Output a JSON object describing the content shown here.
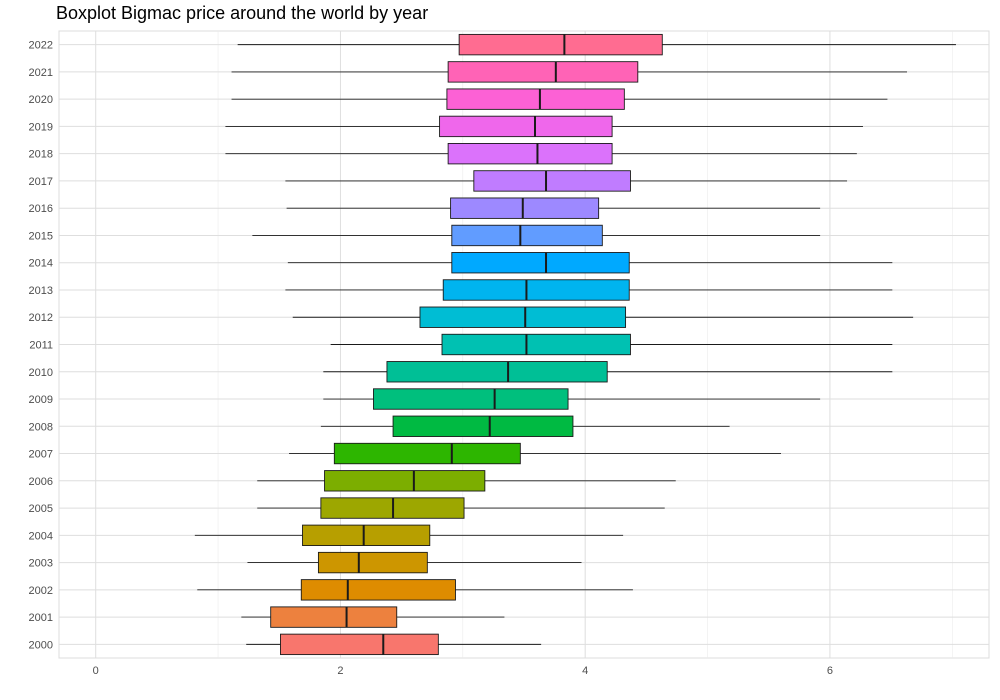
{
  "chart_data": {
    "type": "boxplot",
    "orientation": "horizontal",
    "title": "Boxplot Bigmac price around the world by year",
    "xlabel": "",
    "ylabel": "",
    "xlim": [
      -0.3,
      7.3
    ],
    "x_ticks": [
      0,
      2,
      4,
      6
    ],
    "grid": true,
    "legend": "none",
    "categories": [
      "2022",
      "2021",
      "2020",
      "2019",
      "2018",
      "2017",
      "2016",
      "2015",
      "2014",
      "2013",
      "2012",
      "2011",
      "2010",
      "2009",
      "2008",
      "2007",
      "2006",
      "2005",
      "2004",
      "2003",
      "2002",
      "2001",
      "2000"
    ],
    "boxes": [
      {
        "year": "2022",
        "min": 1.16,
        "q1": 2.97,
        "median": 3.83,
        "q3": 4.63,
        "max": 7.03,
        "color": "#FF6C91"
      },
      {
        "year": "2021",
        "min": 1.11,
        "q1": 2.88,
        "median": 3.76,
        "q3": 4.43,
        "max": 6.63,
        "color": "#FF63B6"
      },
      {
        "year": "2020",
        "min": 1.11,
        "q1": 2.87,
        "median": 3.63,
        "q3": 4.32,
        "max": 6.47,
        "color": "#FC61D5"
      },
      {
        "year": "2019",
        "min": 1.06,
        "q1": 2.81,
        "median": 3.59,
        "q3": 4.22,
        "max": 6.27,
        "color": "#EF67EB"
      },
      {
        "year": "2018",
        "min": 1.06,
        "q1": 2.88,
        "median": 3.61,
        "q3": 4.22,
        "max": 6.22,
        "color": "#DB72FB"
      },
      {
        "year": "2017",
        "min": 1.55,
        "q1": 3.09,
        "median": 3.68,
        "q3": 4.37,
        "max": 6.14,
        "color": "#C07CFF"
      },
      {
        "year": "2016",
        "min": 1.56,
        "q1": 2.9,
        "median": 3.49,
        "q3": 4.11,
        "max": 5.92,
        "color": "#9D89FF"
      },
      {
        "year": "2015",
        "min": 1.28,
        "q1": 2.91,
        "median": 3.47,
        "q3": 4.14,
        "max": 5.92,
        "color": "#619CFF"
      },
      {
        "year": "2014",
        "min": 1.57,
        "q1": 2.91,
        "median": 3.68,
        "q3": 4.36,
        "max": 6.51,
        "color": "#00A9FF"
      },
      {
        "year": "2013",
        "min": 1.55,
        "q1": 2.84,
        "median": 3.52,
        "q3": 4.36,
        "max": 6.51,
        "color": "#00B4EF"
      },
      {
        "year": "2012",
        "min": 1.61,
        "q1": 2.65,
        "median": 3.51,
        "q3": 4.33,
        "max": 6.68,
        "color": "#00BDD4"
      },
      {
        "year": "2011",
        "min": 1.92,
        "q1": 2.83,
        "median": 3.52,
        "q3": 4.37,
        "max": 6.51,
        "color": "#00C1B2"
      },
      {
        "year": "2010",
        "min": 1.86,
        "q1": 2.38,
        "median": 3.37,
        "q3": 4.18,
        "max": 6.51,
        "color": "#00BF96"
      },
      {
        "year": "2009",
        "min": 1.86,
        "q1": 2.27,
        "median": 3.26,
        "q3": 3.86,
        "max": 5.92,
        "color": "#00BF7D"
      },
      {
        "year": "2008",
        "min": 1.84,
        "q1": 2.43,
        "median": 3.22,
        "q3": 3.9,
        "max": 5.18,
        "color": "#00BA42"
      },
      {
        "year": "2007",
        "min": 1.58,
        "q1": 1.95,
        "median": 2.91,
        "q3": 3.47,
        "max": 5.6,
        "color": "#2DB600"
      },
      {
        "year": "2006",
        "min": 1.32,
        "q1": 1.87,
        "median": 2.6,
        "q3": 3.18,
        "max": 4.74,
        "color": "#7CAE00"
      },
      {
        "year": "2005",
        "min": 1.32,
        "q1": 1.84,
        "median": 2.43,
        "q3": 3.01,
        "max": 4.65,
        "color": "#9DA700"
      },
      {
        "year": "2004",
        "min": 0.81,
        "q1": 1.69,
        "median": 2.19,
        "q3": 2.73,
        "max": 4.31,
        "color": "#B79F00"
      },
      {
        "year": "2003",
        "min": 1.24,
        "q1": 1.82,
        "median": 2.15,
        "q3": 2.71,
        "max": 3.97,
        "color": "#CD9600"
      },
      {
        "year": "2002",
        "min": 0.83,
        "q1": 1.68,
        "median": 2.06,
        "q3": 2.94,
        "max": 4.39,
        "color": "#DE8C00"
      },
      {
        "year": "2001",
        "min": 1.19,
        "q1": 1.43,
        "median": 2.05,
        "q3": 2.46,
        "max": 3.34,
        "color": "#ED813E"
      },
      {
        "year": "2000",
        "min": 1.23,
        "q1": 1.51,
        "median": 2.35,
        "q3": 2.8,
        "max": 3.64,
        "color": "#F8766D"
      }
    ]
  }
}
